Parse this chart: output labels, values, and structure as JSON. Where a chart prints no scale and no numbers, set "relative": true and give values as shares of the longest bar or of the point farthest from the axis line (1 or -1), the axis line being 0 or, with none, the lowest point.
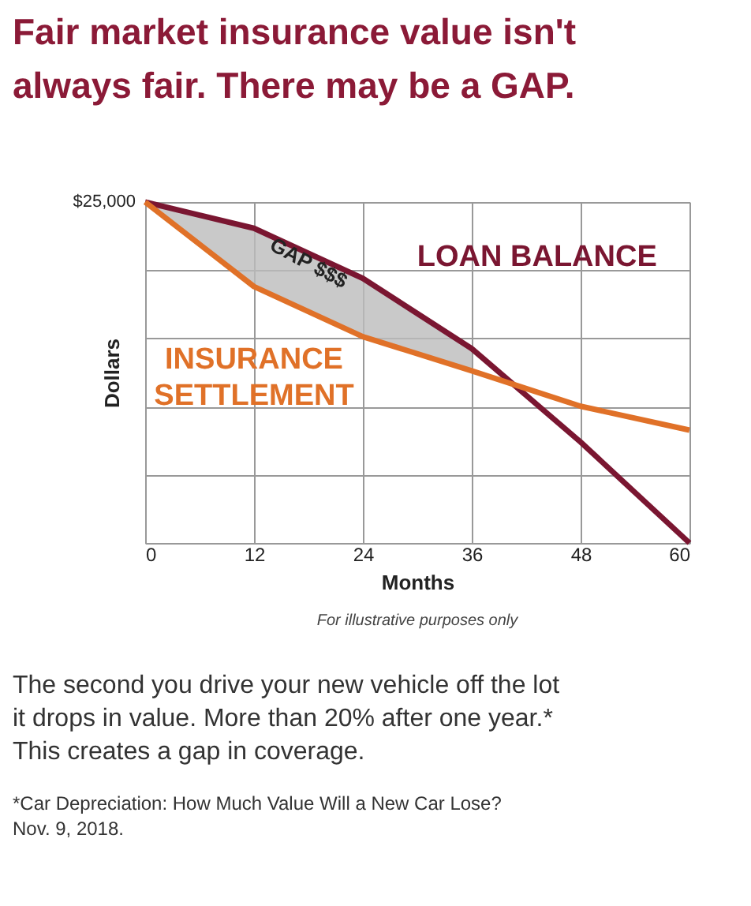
{
  "chart_data": {
    "type": "line",
    "title": "Fair market insurance value isn't\nalways fair. There may be a GAP.",
    "xlabel": "Months",
    "ylabel": "Dollars",
    "relative": true,
    "x": [
      0,
      12,
      24,
      36,
      48,
      60
    ],
    "xlim": [
      0,
      60
    ],
    "xticks": [
      0,
      12,
      24,
      36,
      48,
      60
    ],
    "series": [
      {
        "name": "LOAN BALANCE",
        "color": "#7a1631",
        "values": [
          1,
          0.923,
          0.776,
          0.57,
          0.296,
          0
        ],
        "lower": [
          1,
          0.752,
          0.605,
          0.505,
          null,
          null
        ],
        "upper": [
          1,
          0.923,
          0.776,
          0.57,
          null,
          null
        ]
      },
      {
        "name": "INSURANCE\nSETTLEMENT",
        "color": "#e07128",
        "values": [
          1,
          0.752,
          0.605,
          0.505,
          0.401,
          0.331
        ]
      }
    ],
    "grid": true,
    "marker": "none",
    "line_style": "solid",
    "annotations": [
      {
        "text": "$25,000",
        "x": 0,
        "y": 1
      },
      {
        "text": "GAP $$$",
        "x": 18,
        "y": 0.82
      },
      "For illustrative purposes only",
      "The second you drive your new vehicle off the lot\nit drops in value. More than 20% after one year.*\nThis creates a gap in coverage.",
      "*Car Depreciation: How Much Value Will a New Car Lose?\nNov. 9, 2018."
    ]
  }
}
